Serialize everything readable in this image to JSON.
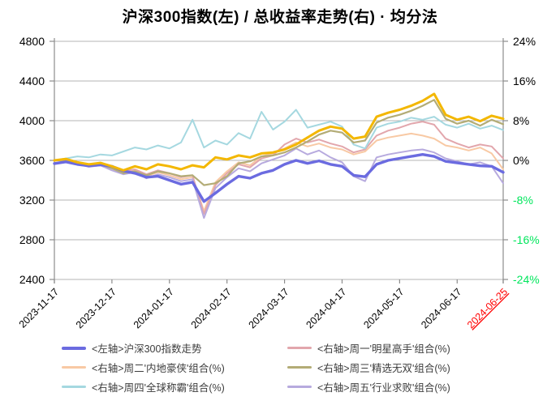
{
  "title": "沪深300指数(左) / 总收益率走势(右) · 均分法",
  "colors": {
    "grid": "#b4b4b4",
    "axis": "#8c8c8c",
    "tick_text": "#000000",
    "negative_tick_text": "#00e65c",
    "highlight_tick_text": "#ff0000",
    "legend_text": "#3c3c3c"
  },
  "legend": {
    "items": [
      {
        "key": "csi300-index-line",
        "label": "<左轴>沪深300指数走势",
        "color": "#6b6be0",
        "thickness": 4
      },
      {
        "key": "monday-portfolio-line",
        "label": "<右轴>周一'明星高手'组合(%)",
        "color": "#e2a6ac",
        "thickness": 3
      },
      {
        "key": "tuesday-portfolio-line",
        "label": "<右轴>周二'内地豪侠'组合(%)",
        "color": "#f8c9a4",
        "thickness": 3
      },
      {
        "key": "wednesday-portfolio-line",
        "label": "<右轴>周三'精选无双'组合(%)",
        "color": "#b3ac76",
        "thickness": 3
      },
      {
        "key": "thursday-portfolio-line",
        "label": "<右轴>周四'全球称霸'组合(%)",
        "color": "#a5d8e0",
        "thickness": 3
      },
      {
        "key": "friday-portfolio-line",
        "label": "<右轴>周五'行业求败'组合(%)",
        "color": "#b7aade",
        "thickness": 3
      }
    ]
  },
  "chart_data": {
    "type": "line",
    "title": "沪深300指数(左) / 总收益率走势(右) · 均分法",
    "grid": true,
    "legend_position": "bottom",
    "left_axis": {
      "min": 2400,
      "max": 4800,
      "tick_values": [
        4800,
        4400,
        4000,
        3600,
        3200,
        2800,
        2400
      ]
    },
    "right_axis": {
      "min": -24,
      "max": 24,
      "tick_values": [
        24,
        16,
        8,
        0,
        -8,
        -16,
        -24
      ],
      "tick_labels": [
        "24%",
        "16%",
        "8%",
        "0%",
        "-8%",
        "-16%",
        "-24%"
      ]
    },
    "x_tick_labels": [
      "2023-11-17",
      "2023-12-17",
      "2024-01-17",
      "2024-02-17",
      "2024-03-17",
      "2024-04-17",
      "2024-05-17",
      "2024-06-17",
      "2024-06-25"
    ],
    "x_tick_indices": [
      0,
      5,
      10,
      15,
      20,
      25,
      30,
      35,
      39
    ],
    "highlight_last_x_tick": true,
    "series": [
      {
        "key": "tuesday-portfolio-line",
        "label": "<右轴>周二'内地豪侠'组合(%)",
        "axis": "right",
        "color": "#f8c9a4",
        "width": 2,
        "values": [
          0,
          0.1,
          -0.5,
          -1.1,
          -0.8,
          -1.7,
          -2.5,
          -2.1,
          -3.2,
          -2.4,
          -3.0,
          -3.8,
          -3.4,
          -10.2,
          -4.4,
          -2.2,
          -0.4,
          -1.0,
          0.8,
          1.4,
          2.4,
          3.6,
          2.8,
          3.4,
          2.6,
          2.2,
          1.2,
          1.8,
          4.0,
          4.6,
          5.0,
          5.4,
          5.0,
          4.4,
          3.0,
          2.6,
          2.0,
          2.6,
          1.4,
          -1.8
        ]
      },
      {
        "key": "monday-portfolio-line",
        "label": "<右轴>周一'明星高手'组合(%)",
        "axis": "right",
        "color": "#e2a6ac",
        "width": 2,
        "values": [
          0,
          0.2,
          -0.4,
          -0.9,
          -0.6,
          -1.4,
          -2.2,
          -1.8,
          -2.8,
          -2.0,
          -2.6,
          -3.4,
          -3.0,
          -10.8,
          -5.0,
          -2.6,
          -0.8,
          -1.4,
          0.4,
          1.0,
          3.2,
          4.4,
          3.6,
          4.2,
          3.4,
          2.8,
          1.6,
          2.2,
          5.0,
          6.0,
          6.6,
          7.4,
          7.8,
          7.2,
          4.4,
          3.4,
          2.6,
          3.2,
          2.8,
          0.4
        ]
      },
      {
        "key": "friday-portfolio-line",
        "label": "<右轴>周五'行业求败'组合(%)",
        "axis": "right",
        "color": "#b7aade",
        "width": 2,
        "values": [
          0,
          -0.1,
          -0.7,
          -1.3,
          -1.0,
          -2.0,
          -2.8,
          -2.4,
          -3.6,
          -2.8,
          -3.4,
          -4.2,
          -3.8,
          -11.6,
          -5.6,
          -3.4,
          -1.6,
          -2.2,
          -0.6,
          0.2,
          1.0,
          2.4,
          1.2,
          2.0,
          0.6,
          -0.4,
          -3.2,
          -4.2,
          0.6,
          1.2,
          1.6,
          2.0,
          2.2,
          1.6,
          0.4,
          -0.2,
          -0.8,
          -0.4,
          -1.2,
          -4.6
        ]
      },
      {
        "key": "thursday-portfolio-line",
        "label": "<右轴>周四'全球称霸'组合(%)",
        "axis": "right",
        "color": "#a5d8e0",
        "width": 2,
        "values": [
          0,
          0.4,
          0.8,
          0.6,
          1.2,
          1.0,
          1.8,
          2.6,
          2.2,
          3.0,
          2.4,
          3.6,
          8.2,
          2.6,
          4.0,
          3.2,
          5.5,
          4.4,
          9.8,
          6.2,
          7.8,
          10.2,
          6.6,
          7.2,
          7.8,
          6.8,
          3.2,
          2.4,
          6.6,
          7.4,
          7.8,
          8.6,
          8.2,
          8.8,
          7.2,
          6.6,
          7.4,
          6.4,
          7.0,
          6.1
        ]
      },
      {
        "key": "wednesday-portfolio-line",
        "label": "<右轴>周三'精选无双'组合(%)",
        "axis": "right",
        "color": "#b3ac76",
        "width": 2.2,
        "values": [
          0,
          0.1,
          -0.5,
          -1.0,
          -0.8,
          -1.6,
          -2.6,
          -2.2,
          -3.0,
          -2.2,
          -2.6,
          -3.2,
          -3.0,
          -5.0,
          -4.6,
          -3.2,
          -0.6,
          -0.2,
          0.8,
          1.0,
          1.6,
          2.6,
          3.8,
          5.2,
          6.0,
          5.6,
          3.6,
          4.0,
          7.6,
          8.6,
          9.2,
          10.0,
          11.0,
          12.2,
          8.4,
          7.4,
          8.0,
          7.0,
          8.2,
          7.3
        ]
      },
      {
        "key": "csi300-index-line",
        "label": "<左轴>沪深300指数走势",
        "axis": "left",
        "color": "#6b6be0",
        "width": 3.4,
        "values": [
          3568,
          3585,
          3560,
          3545,
          3555,
          3540,
          3495,
          3470,
          3430,
          3440,
          3400,
          3360,
          3380,
          3185,
          3270,
          3360,
          3440,
          3420,
          3470,
          3500,
          3560,
          3600,
          3570,
          3595,
          3560,
          3540,
          3450,
          3435,
          3560,
          3600,
          3620,
          3640,
          3660,
          3640,
          3590,
          3575,
          3560,
          3545,
          3540,
          3480
        ]
      },
      {
        "key": "gold-average-line",
        "label": "",
        "axis": "right",
        "color": "#f3b700",
        "width": 3,
        "values": [
          0,
          0.3,
          -0.4,
          -0.8,
          -0.5,
          -1.2,
          -2.0,
          -1.2,
          -1.8,
          -0.8,
          -1.2,
          -1.8,
          -1.0,
          -1.4,
          0.6,
          0.2,
          1.0,
          0.6,
          1.4,
          1.6,
          2.2,
          3.2,
          4.6,
          6.0,
          6.8,
          6.4,
          4.4,
          4.8,
          8.8,
          9.6,
          10.2,
          11.0,
          12.0,
          13.4,
          9.2,
          8.2,
          8.8,
          7.9,
          9.0,
          8.4
        ]
      }
    ]
  }
}
